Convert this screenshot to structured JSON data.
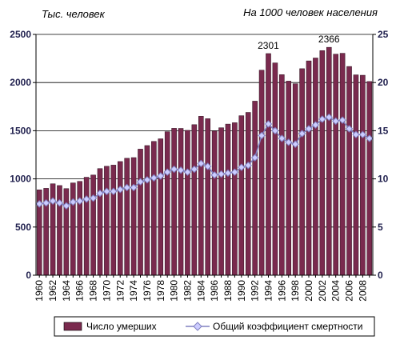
{
  "chart_data": {
    "type": "bar",
    "title_left": "Тыс. человек",
    "title_right": "На 1000 человек населения",
    "x": [
      1960,
      1961,
      1962,
      1963,
      1964,
      1965,
      1966,
      1967,
      1968,
      1969,
      1970,
      1971,
      1972,
      1973,
      1974,
      1975,
      1976,
      1977,
      1978,
      1979,
      1980,
      1981,
      1982,
      1983,
      1984,
      1985,
      1986,
      1987,
      1988,
      1989,
      1990,
      1991,
      1992,
      1993,
      1994,
      1995,
      1996,
      1997,
      1998,
      1999,
      2000,
      2001,
      2002,
      2003,
      2004,
      2005,
      2006,
      2007,
      2008,
      2009
    ],
    "x_tick_labels": [
      "1960",
      "1962",
      "1964",
      "1966",
      "1968",
      "1970",
      "1972",
      "1974",
      "1976",
      "1978",
      "1980",
      "1982",
      "1984",
      "1986",
      "1988",
      "1990",
      "1992",
      "1994",
      "1996",
      "1998",
      "2000",
      "2002",
      "2004",
      "2006",
      "2008"
    ],
    "series": [
      {
        "name": "Число умерших",
        "axis": "left",
        "type": "bar",
        "color": "#7a2a4e",
        "values": [
          886,
          902,
          949,
          931,
          899,
          958,
          974,
          1017,
          1040,
          1107,
          1131,
          1143,
          1180,
          1214,
          1221,
          1309,
          1346,
          1389,
          1416,
          1490,
          1525,
          1524,
          1504,
          1563,
          1650,
          1625,
          1498,
          1531,
          1569,
          1583,
          1656,
          1690,
          1807,
          2129,
          2301,
          2204,
          2082,
          2015,
          1988,
          2144,
          2225,
          2255,
          2332,
          2366,
          2295,
          2304,
          2167,
          2080,
          2076,
          2011
        ]
      },
      {
        "name": "Общий коэффициент смертности",
        "axis": "right",
        "type": "line",
        "color": "#8080c0",
        "marker_fill": "#ccccff",
        "values": [
          7.4,
          7.5,
          7.7,
          7.5,
          7.2,
          7.6,
          7.7,
          7.9,
          8.0,
          8.5,
          8.7,
          8.7,
          8.9,
          9.1,
          9.1,
          9.7,
          9.9,
          10.1,
          10.3,
          10.7,
          11.0,
          10.9,
          10.7,
          11.0,
          11.6,
          11.3,
          10.4,
          10.5,
          10.6,
          10.7,
          11.2,
          11.4,
          12.2,
          14.5,
          15.7,
          15.0,
          14.2,
          13.8,
          13.6,
          14.7,
          15.2,
          15.6,
          16.2,
          16.4,
          16.0,
          16.1,
          15.2,
          14.6,
          14.6,
          14.2
        ]
      }
    ],
    "y_left": {
      "min": 0,
      "max": 2500,
      "ticks": [
        0,
        500,
        1000,
        1500,
        2000,
        2500
      ]
    },
    "y_right": {
      "min": 0,
      "max": 25,
      "ticks": [
        0,
        5,
        10,
        15,
        20,
        25
      ]
    },
    "annotations": [
      {
        "x": 1994,
        "text": "2301"
      },
      {
        "x": 2003,
        "text": "2366"
      }
    ],
    "grid": true,
    "legend_position": "bottom"
  }
}
